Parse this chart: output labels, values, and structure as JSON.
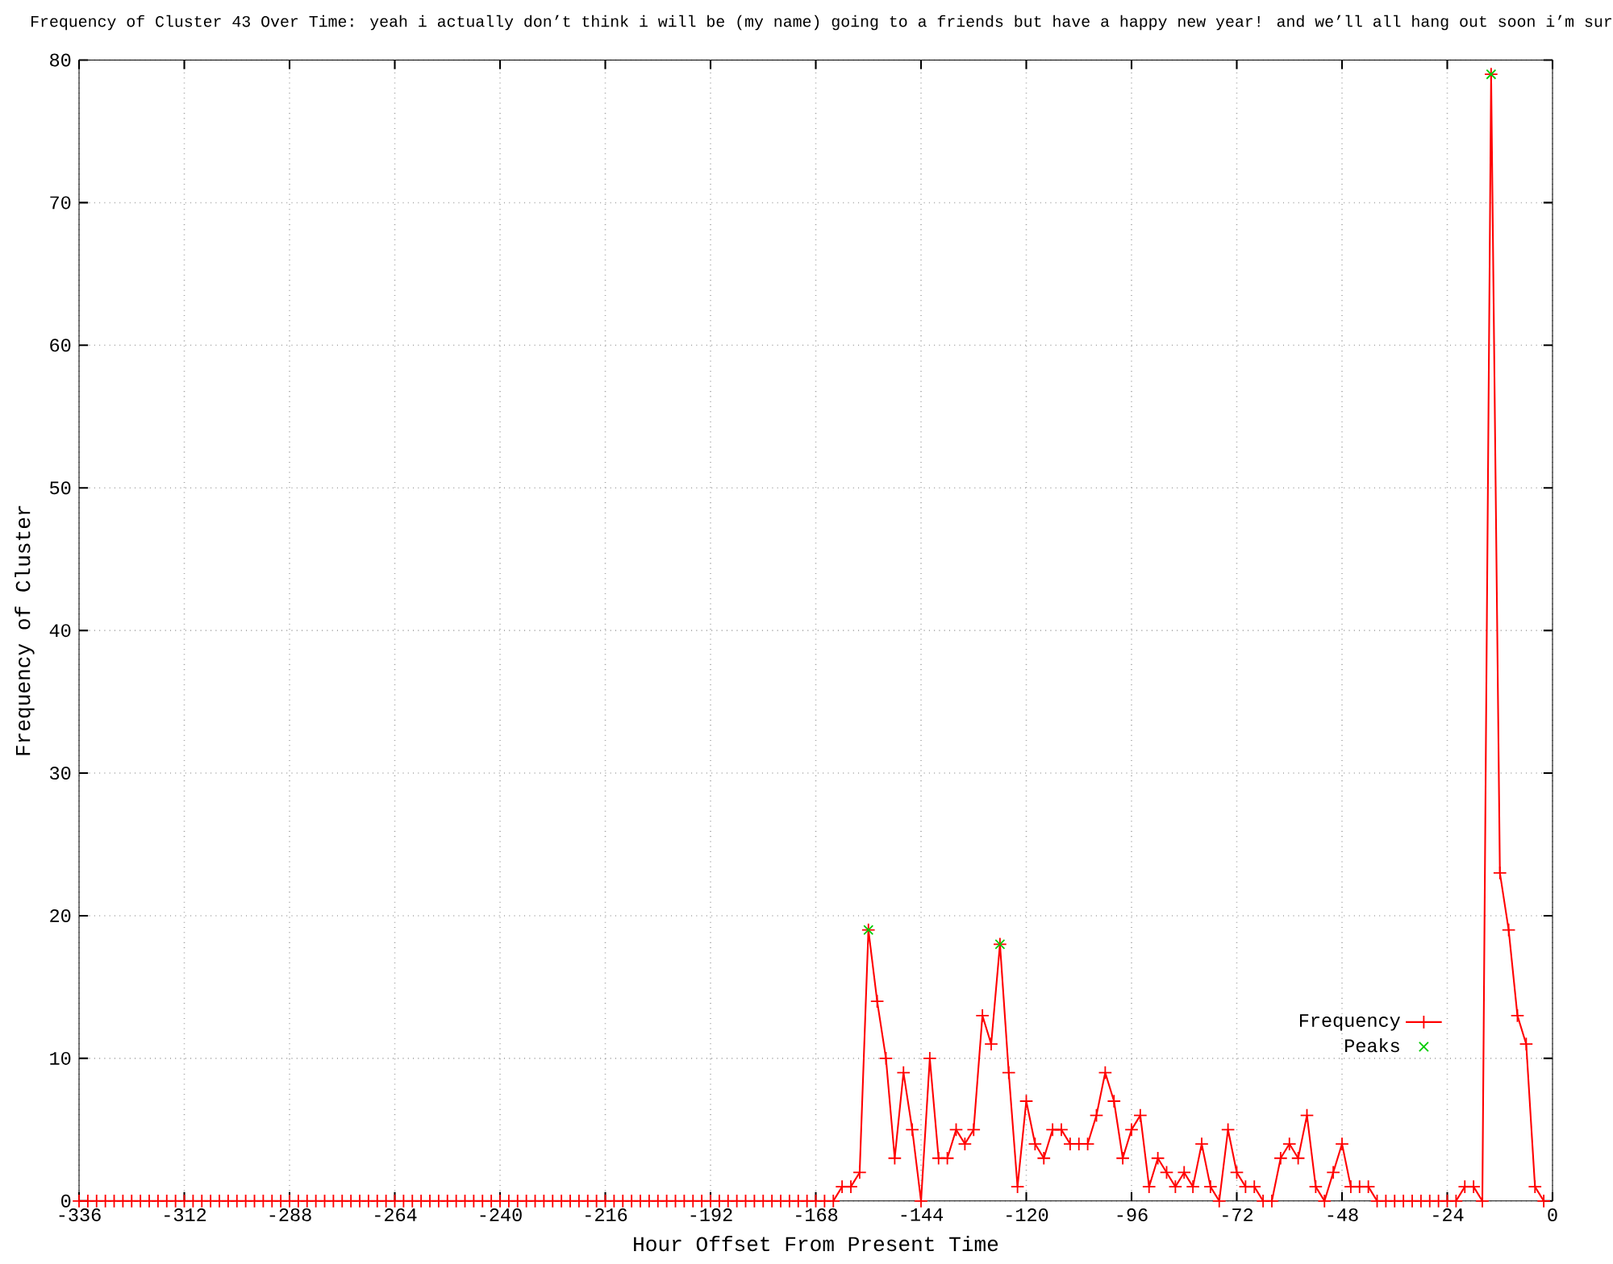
{
  "chart_data": {
    "type": "line",
    "title": "Frequency of Cluster 43 Over Time: yeah i actually don’t think i will be (my name) going to a friends but have a happy new year! and we’ll all hang out soon i’m sur",
    "xlabel": "Hour Offset From Present Time",
    "ylabel": "Frequency of Cluster",
    "x": [
      -336,
      -334,
      -332,
      -330,
      -328,
      -326,
      -324,
      -322,
      -320,
      -318,
      -316,
      -314,
      -312,
      -310,
      -308,
      -306,
      -304,
      -302,
      -300,
      -298,
      -296,
      -294,
      -292,
      -290,
      -288,
      -286,
      -284,
      -282,
      -280,
      -278,
      -276,
      -274,
      -272,
      -270,
      -268,
      -266,
      -264,
      -262,
      -260,
      -258,
      -256,
      -254,
      -252,
      -250,
      -248,
      -246,
      -244,
      -242,
      -240,
      -238,
      -236,
      -234,
      -232,
      -230,
      -228,
      -226,
      -224,
      -222,
      -220,
      -218,
      -216,
      -214,
      -212,
      -210,
      -208,
      -206,
      -204,
      -202,
      -200,
      -198,
      -196,
      -194,
      -192,
      -190,
      -188,
      -186,
      -184,
      -182,
      -180,
      -178,
      -176,
      -174,
      -172,
      -170,
      -168,
      -166,
      -164,
      -162,
      -160,
      -158,
      -156,
      -154,
      -152,
      -150,
      -148,
      -146,
      -144,
      -142,
      -140,
      -138,
      -136,
      -134,
      -132,
      -130,
      -128,
      -126,
      -124,
      -122,
      -120,
      -118,
      -116,
      -114,
      -112,
      -110,
      -108,
      -106,
      -104,
      -102,
      -100,
      -98,
      -96,
      -94,
      -92,
      -90,
      -88,
      -86,
      -84,
      -82,
      -80,
      -78,
      -76,
      -74,
      -72,
      -70,
      -68,
      -66,
      -64,
      -62,
      -60,
      -58,
      -56,
      -54,
      -52,
      -50,
      -48,
      -46,
      -44,
      -42,
      -40,
      -38,
      -36,
      -34,
      -32,
      -30,
      -28,
      -26,
      -24,
      -22,
      -20,
      -18,
      -16,
      -14,
      -12,
      -10,
      -8,
      -6,
      -4,
      -2
    ],
    "series": [
      {
        "name": "Frequency",
        "color": "#ff0000",
        "marker": "cross",
        "values": [
          0,
          0,
          0,
          0,
          0,
          0,
          0,
          0,
          0,
          0,
          0,
          0,
          0,
          0,
          0,
          0,
          0,
          0,
          0,
          0,
          0,
          0,
          0,
          0,
          0,
          0,
          0,
          0,
          0,
          0,
          0,
          0,
          0,
          0,
          0,
          0,
          0,
          0,
          0,
          0,
          0,
          0,
          0,
          0,
          0,
          0,
          0,
          0,
          0,
          0,
          0,
          0,
          0,
          0,
          0,
          0,
          0,
          0,
          0,
          0,
          0,
          0,
          0,
          0,
          0,
          0,
          0,
          0,
          0,
          0,
          0,
          0,
          0,
          0,
          0,
          0,
          0,
          0,
          0,
          0,
          0,
          0,
          0,
          0,
          0,
          0,
          0,
          1,
          1,
          2,
          19,
          14,
          10,
          3,
          9,
          5,
          0,
          10,
          3,
          3,
          5,
          4,
          5,
          13,
          11,
          18,
          9,
          1,
          7,
          4,
          3,
          5,
          5,
          4,
          4,
          4,
          6,
          9,
          7,
          3,
          5,
          6,
          1,
          3,
          2,
          1,
          2,
          1,
          4,
          1,
          0,
          5,
          2,
          1,
          1,
          0,
          0,
          3,
          4,
          3,
          6,
          1,
          0,
          2,
          4,
          1,
          1,
          1,
          0,
          0,
          0,
          0,
          0,
          0,
          0,
          0,
          0,
          0,
          1,
          1,
          0,
          79,
          23,
          19,
          13,
          11,
          1,
          0
        ]
      },
      {
        "name": "Peaks",
        "color": "#00cc00",
        "type": "scatter",
        "marker": "cross",
        "x": [
          -156,
          -126,
          -14
        ],
        "values": [
          19,
          18,
          79
        ]
      }
    ],
    "xlim": [
      -336,
      0
    ],
    "ylim": [
      0,
      80
    ],
    "xticks": [
      -336,
      -312,
      -288,
      -264,
      -240,
      -216,
      -192,
      -168,
      -144,
      -120,
      -96,
      -72,
      -48,
      -24,
      0
    ],
    "yticks": [
      0,
      10,
      20,
      30,
      40,
      50,
      60,
      70,
      80
    ],
    "grid": true,
    "legend": "bottom right"
  }
}
